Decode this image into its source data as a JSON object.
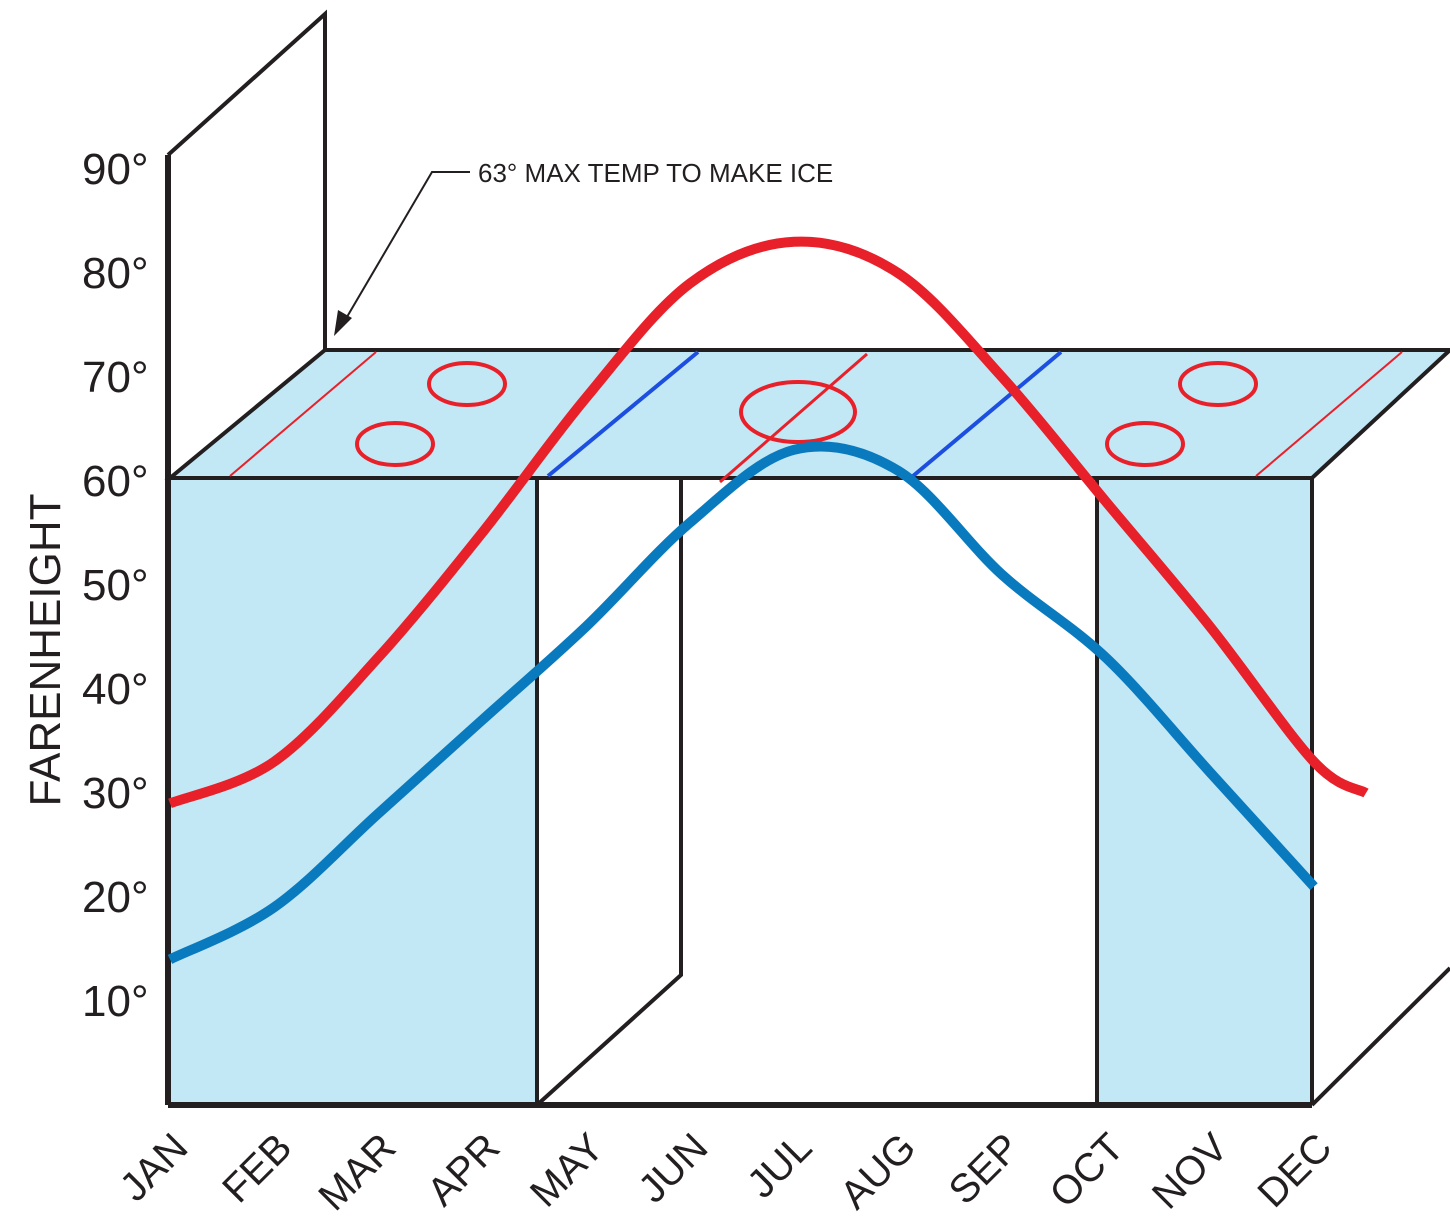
{
  "chart_data": {
    "type": "line",
    "ylabel": "FARENHEIGHT",
    "annotation": "63° MAX TEMP TO MAKE ICE",
    "threshold": 63,
    "y_ticks": [
      "10°",
      "20°",
      "30°",
      "40°",
      "50°",
      "60°",
      "70°",
      "80°",
      "90°"
    ],
    "categories": [
      "JAN",
      "FEB",
      "MAR",
      "APR",
      "MAY",
      "JUN",
      "JUL",
      "AUG",
      "SEP",
      "OCT",
      "NOV",
      "DEC"
    ],
    "series": [
      {
        "color": "#e8202a",
        "x": [
          0,
          1,
          2,
          3,
          4,
          5,
          6,
          7,
          8,
          9,
          10,
          11,
          11.5
        ],
        "values": [
          29,
          33,
          43,
          55,
          68,
          79,
          83,
          80,
          70,
          58,
          46,
          33,
          30
        ]
      },
      {
        "color": "#0a7abf",
        "x": [
          0,
          1,
          2,
          3,
          4,
          5,
          6,
          7,
          8,
          9,
          10,
          11
        ],
        "values": [
          14,
          19,
          28,
          37,
          46,
          56,
          63,
          61,
          51,
          43,
          32,
          21
        ]
      }
    ],
    "colors": {
      "ice": "#c3e8f5",
      "outline": "#231f20",
      "red": "#e8202a",
      "blue": "#0a7abf",
      "rink_blue_line": "#1c4fe0"
    }
  }
}
